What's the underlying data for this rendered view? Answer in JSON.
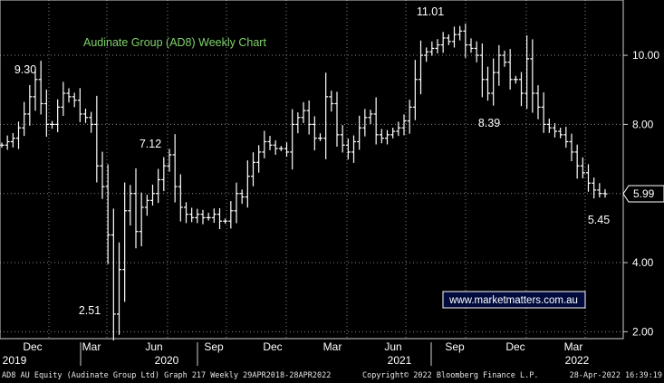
{
  "chart_data": {
    "type": "line",
    "title": "Audinate Group (AD8) Weekly Chart",
    "watermark": "www.marketmatters.com.au",
    "ylim": [
      1.8,
      11.6
    ],
    "yticks": [
      "2.00",
      "4.00",
      "6.00",
      "8.00",
      "10.00"
    ],
    "last_price": "5.99",
    "x_month_labels": [
      "Dec",
      "Mar",
      "Jun",
      "Sep",
      "Dec",
      "Mar",
      "Jun",
      "Sep",
      "Dec",
      "Mar"
    ],
    "x_year_labels": [
      "2019",
      "2020",
      "2021",
      "2022"
    ],
    "annotations": [
      "9.30",
      "2.51",
      "7.12",
      "11.01",
      "8.39",
      "5.45"
    ],
    "series": [
      {
        "values": [
          7.4,
          7.5,
          7.6,
          7.9,
          8.3,
          8.8,
          9.3,
          8.6,
          8.0,
          8.0,
          8.5,
          8.9,
          8.8,
          8.7,
          8.3,
          8.2,
          8.0,
          6.8,
          6.2,
          4.8,
          2.51,
          3.8,
          5.5,
          6.0,
          4.9,
          5.6,
          5.8,
          6.0,
          6.4,
          6.8,
          7.12,
          6.2,
          5.6,
          5.4,
          5.3,
          5.4,
          5.3,
          5.3,
          5.4,
          5.2,
          5.2,
          5.5,
          6.0,
          5.9,
          6.5,
          6.9,
          7.2,
          7.5,
          7.4,
          7.3,
          7.3,
          7.2,
          8.0,
          8.2,
          8.4,
          8.0,
          7.6,
          7.6,
          8.8,
          8.6,
          7.7,
          7.4,
          7.2,
          7.5,
          7.9,
          8.2,
          8.3,
          7.7,
          7.6,
          7.7,
          7.8,
          7.9,
          8.1,
          8.5,
          9.3,
          10.0,
          10.1,
          10.2,
          10.3,
          10.5,
          10.4,
          10.6,
          10.7,
          10.3,
          10.2,
          10.0,
          9.3,
          8.9,
          9.5,
          10.0,
          9.8,
          9.3,
          9.3,
          8.9,
          9.9,
          8.9,
          8.5,
          8.0,
          7.9,
          7.8,
          7.7,
          7.5,
          7.2,
          6.8,
          6.6,
          6.3,
          6.1,
          6.0,
          5.99
        ]
      }
    ]
  },
  "footer": {
    "left": "AD8 AU Equity (Audinate Group Ltd) Graph 217  Weekly 29APR2018-28APR2022",
    "center": "Copyright© 2022 Bloomberg Finance L.P.",
    "right": "28-Apr-2022 16:39:19"
  }
}
